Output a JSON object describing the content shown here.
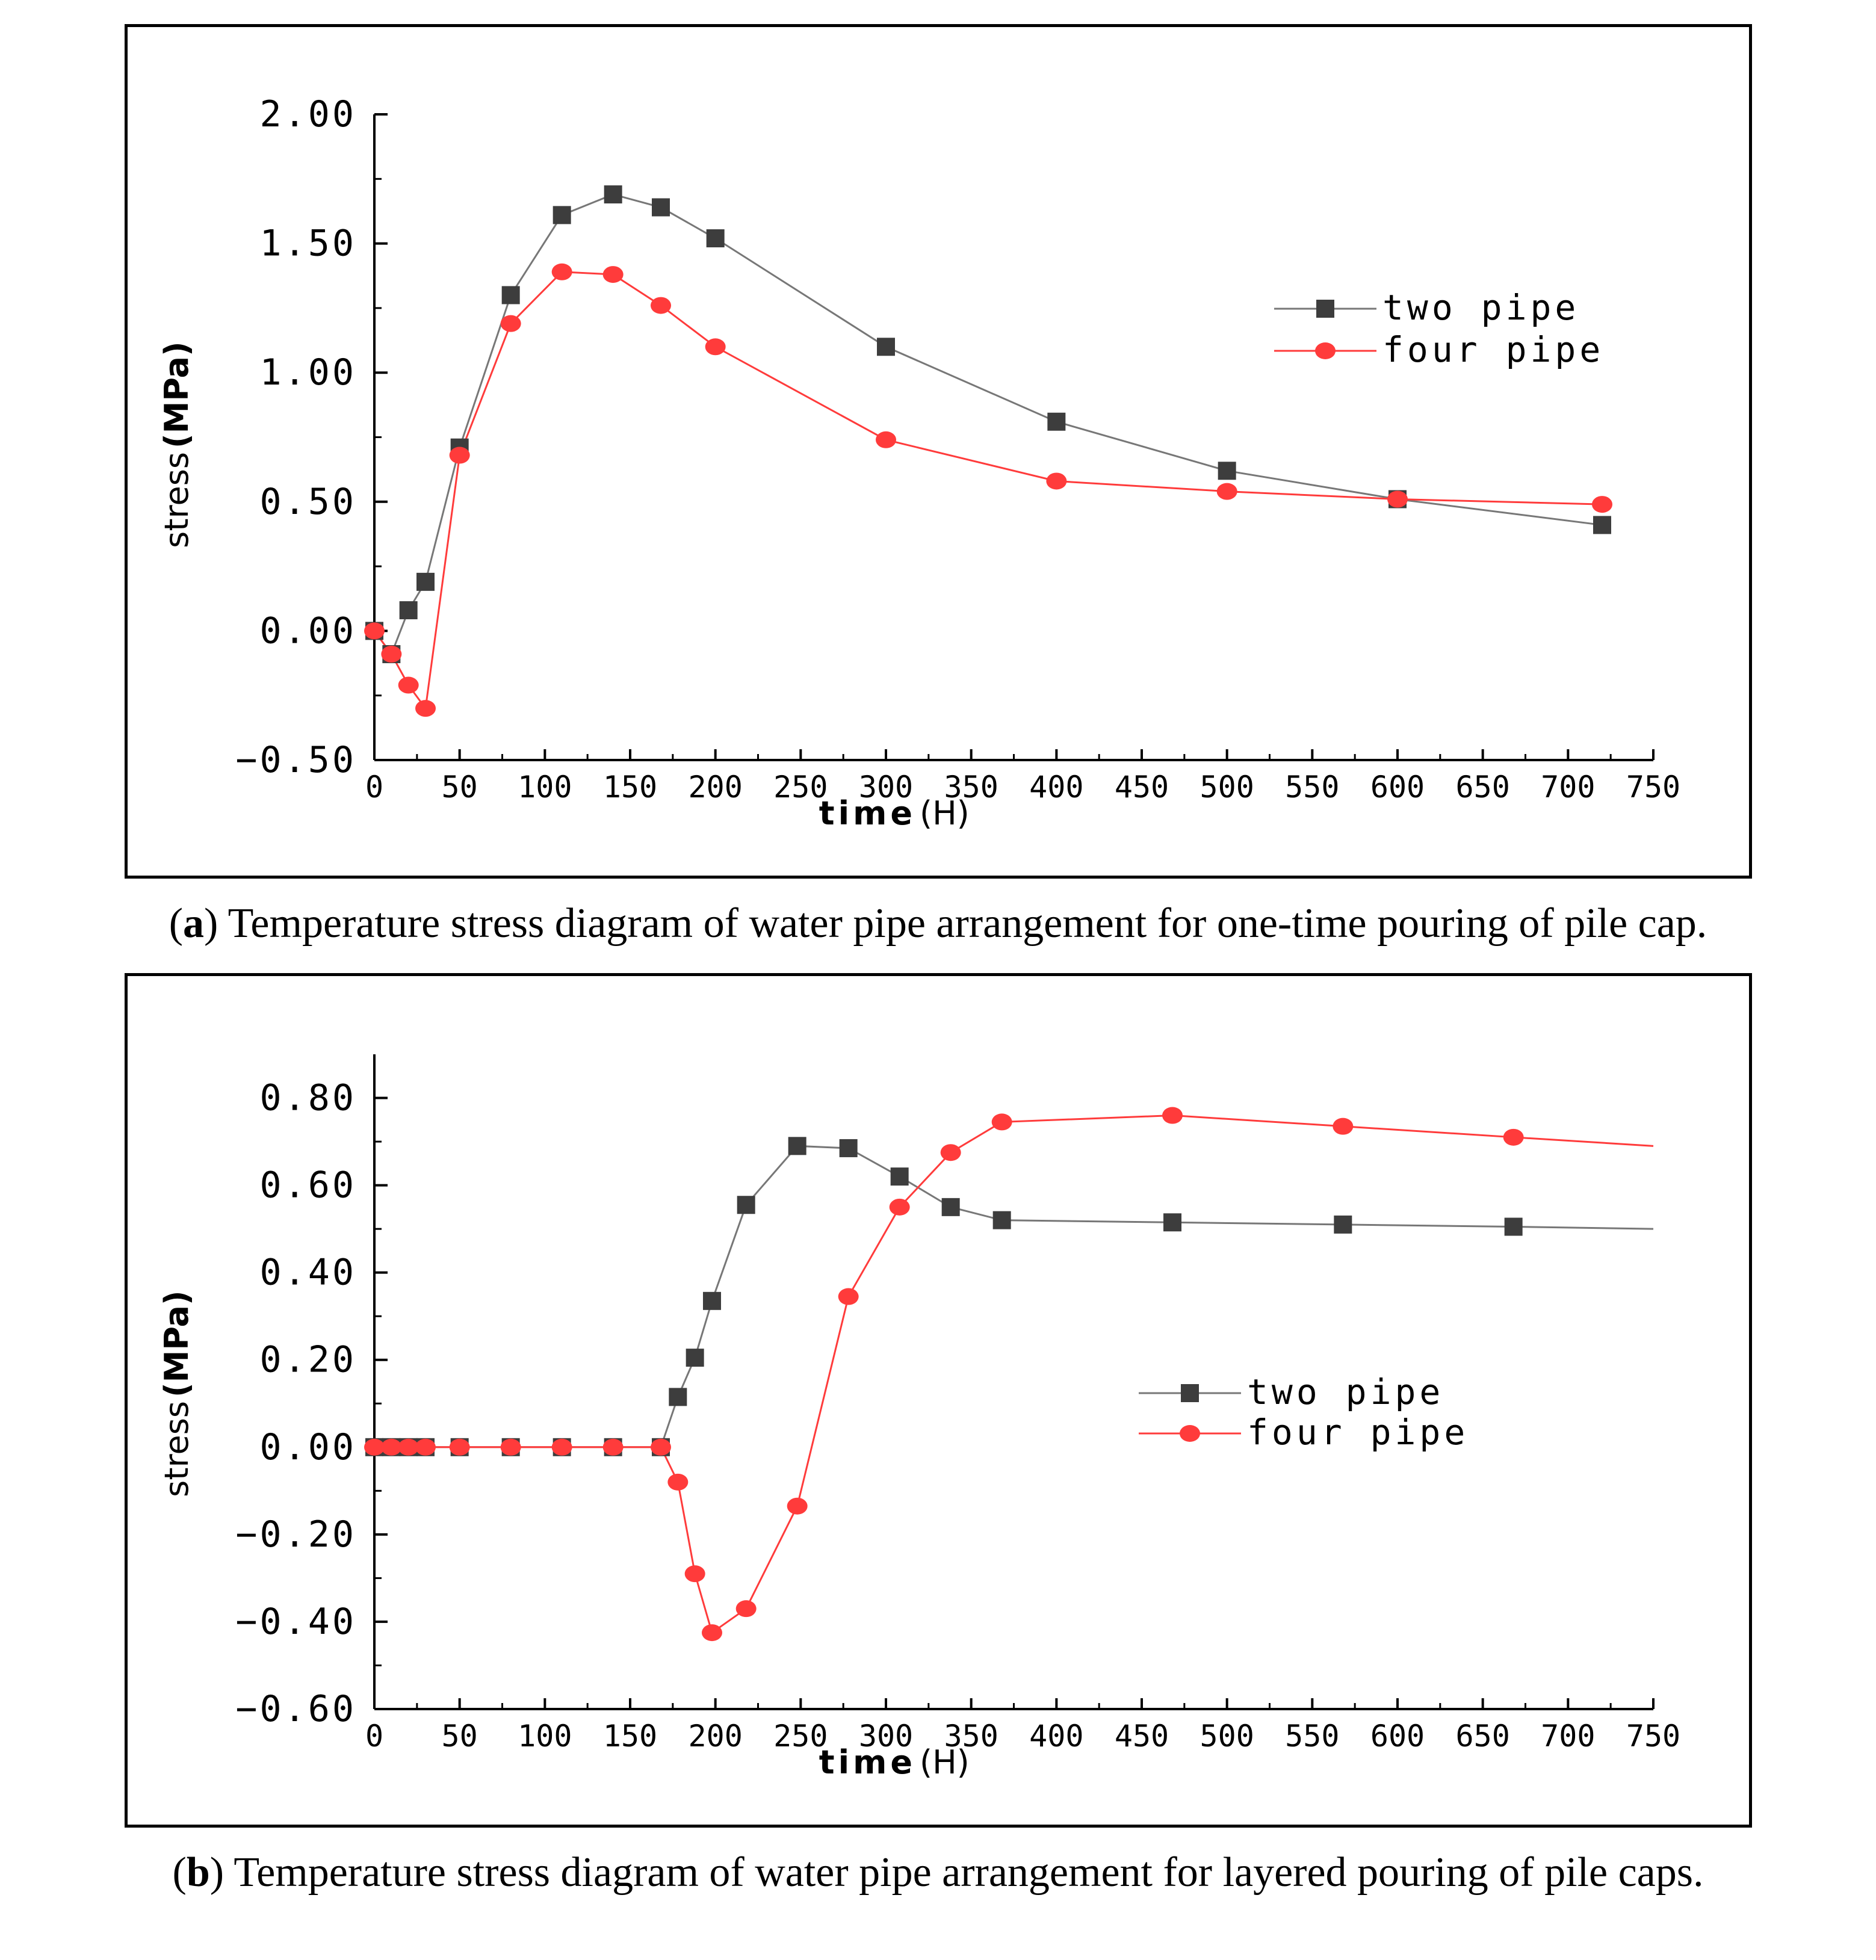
{
  "colors": {
    "two_pipe_line": "#777777",
    "two_pipe_marker": "#3d3d3d",
    "four_pipe": "#ff3b3b",
    "axis": "#000000"
  },
  "captions": [
    {
      "letter": "a",
      "text": " Temperature stress diagram of water pipe arrangement for one-time pouring of pile cap."
    },
    {
      "letter": "b",
      "text": " Temperature stress diagram of water pipe arrangement for layered pouring of pile caps."
    }
  ],
  "chart_data": [
    {
      "type": "line",
      "xlabel": "time",
      "xunit": "(H)",
      "ylabel": "stress",
      "yunit": "(MPa)",
      "xlim": [
        0,
        750
      ],
      "ylim": [
        -0.5,
        2.0
      ],
      "xticks": [
        "0",
        "50",
        "100",
        "150",
        "200",
        "250",
        "300",
        "350",
        "400",
        "450",
        "500",
        "550",
        "600",
        "650",
        "700",
        "750"
      ],
      "yticks": [
        "2.00",
        "1.50",
        "1.00",
        "0.50",
        "0.00",
        "−0.50"
      ],
      "ytick_values": [
        2.0,
        1.5,
        1.0,
        0.5,
        0.0,
        -0.5
      ],
      "legend_position": "center-right",
      "series": [
        {
          "name": "two pipe",
          "marker": "square",
          "x": [
            0,
            10,
            20,
            30,
            50,
            80,
            110,
            140,
            168,
            200,
            300,
            400,
            500,
            600,
            720
          ],
          "y": [
            0.0,
            -0.09,
            0.08,
            0.19,
            0.71,
            1.3,
            1.61,
            1.69,
            1.64,
            1.52,
            1.1,
            0.81,
            0.62,
            0.51,
            0.41
          ]
        },
        {
          "name": "four pipe",
          "marker": "circle",
          "x": [
            0,
            10,
            20,
            30,
            50,
            80,
            110,
            140,
            168,
            200,
            300,
            400,
            500,
            600,
            720
          ],
          "y": [
            0.0,
            -0.09,
            -0.21,
            -0.3,
            0.68,
            1.19,
            1.39,
            1.38,
            1.26,
            1.1,
            0.74,
            0.58,
            0.54,
            0.51,
            0.49
          ]
        }
      ]
    },
    {
      "type": "line",
      "xlabel": "time",
      "xunit": "(H)",
      "ylabel": "stress",
      "yunit": "(MPa)",
      "xlim": [
        0,
        750
      ],
      "ylim": [
        -0.6,
        0.9
      ],
      "xticks": [
        "0",
        "50",
        "100",
        "150",
        "200",
        "250",
        "300",
        "350",
        "400",
        "450",
        "500",
        "550",
        "600",
        "650",
        "700",
        "750"
      ],
      "yticks": [
        "0.80",
        "0.60",
        "0.40",
        "0.20",
        "0.00",
        "−0.20",
        "−0.40",
        "−0.60"
      ],
      "ytick_values": [
        0.8,
        0.6,
        0.4,
        0.2,
        0.0,
        -0.2,
        -0.4,
        -0.6
      ],
      "legend_position": "center-right",
      "series": [
        {
          "name": "two pipe",
          "marker": "square",
          "x": [
            0,
            10,
            20,
            30,
            50,
            80,
            110,
            140,
            168,
            178,
            188,
            198,
            218,
            248,
            278,
            308,
            338,
            368,
            468,
            568,
            668,
            750
          ],
          "y": [
            0,
            0,
            0,
            0,
            0,
            0,
            0,
            0,
            0,
            0.115,
            0.205,
            0.335,
            0.555,
            0.69,
            0.685,
            0.62,
            0.55,
            0.52,
            0.515,
            0.51,
            0.505,
            0.5
          ],
          "marker_mask": [
            1,
            1,
            1,
            1,
            1,
            1,
            1,
            1,
            1,
            1,
            1,
            1,
            1,
            1,
            1,
            1,
            1,
            1,
            1,
            1,
            1,
            0
          ]
        },
        {
          "name": "four pipe",
          "marker": "circle",
          "x": [
            0,
            10,
            20,
            30,
            50,
            80,
            110,
            140,
            168,
            178,
            188,
            198,
            218,
            248,
            278,
            308,
            338,
            368,
            468,
            568,
            668,
            750
          ],
          "y": [
            0,
            0,
            0,
            0,
            0,
            0,
            0,
            0,
            0,
            -0.08,
            -0.29,
            -0.425,
            -0.37,
            -0.135,
            0.345,
            0.55,
            0.675,
            0.745,
            0.76,
            0.735,
            0.71,
            0.69
          ],
          "marker_mask": [
            1,
            1,
            1,
            1,
            1,
            1,
            1,
            1,
            1,
            1,
            1,
            1,
            1,
            1,
            1,
            1,
            1,
            1,
            1,
            1,
            1,
            0
          ]
        }
      ]
    }
  ]
}
